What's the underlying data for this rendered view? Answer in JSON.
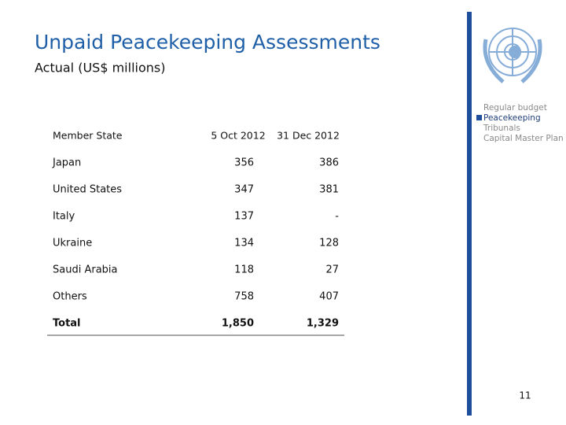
{
  "header": {
    "title": "Unpaid Peacekeeping Assessments",
    "subtitle": "Actual (US$ millions)"
  },
  "table": {
    "columns": [
      "Member State",
      "5 Oct 2012",
      "31 Dec 2012"
    ],
    "rows": [
      [
        "Japan",
        "356",
        "386"
      ],
      [
        "United States",
        "347",
        "381"
      ],
      [
        "Italy",
        "137",
        "-"
      ],
      [
        "Ukraine",
        "134",
        "128"
      ],
      [
        "Saudi Arabia",
        "118",
        "27"
      ],
      [
        "Others",
        "758",
        "407"
      ],
      [
        "Total",
        "1,850",
        "1,329"
      ]
    ]
  },
  "nav": {
    "items": [
      "Regular budget",
      "Peacekeeping",
      "Tribunals",
      "Capital Master Plan"
    ],
    "active": 1
  },
  "page_number": "11"
}
